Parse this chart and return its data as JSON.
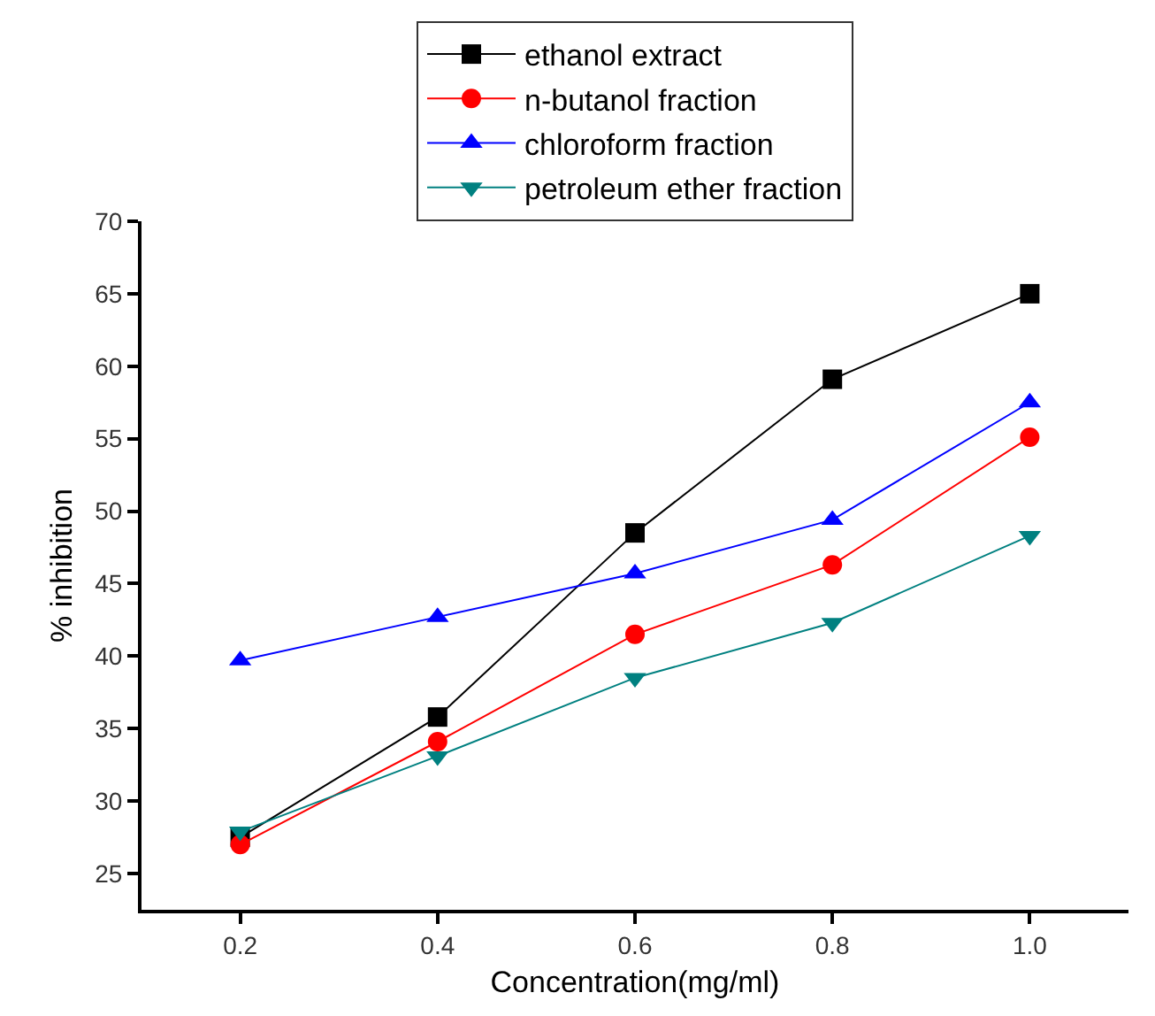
{
  "chart_data": {
    "type": "line",
    "xlabel": "Concentration(mg/ml)",
    "ylabel": "% inhibition",
    "x": [
      0.2,
      0.4,
      0.6,
      0.8,
      1.0
    ],
    "series": [
      {
        "name": "ethanol extract",
        "color": "#000000",
        "marker": "square",
        "values": [
          27.5,
          35.8,
          48.5,
          59.1,
          65.0
        ]
      },
      {
        "name": "n-butanol fraction",
        "color": "#ff0000",
        "marker": "circle",
        "values": [
          27.0,
          34.1,
          41.5,
          46.3,
          55.1
        ]
      },
      {
        "name": "chloroform fraction",
        "color": "#0000ff",
        "marker": "triangle",
        "values": [
          39.7,
          42.7,
          45.7,
          49.4,
          57.5
        ]
      },
      {
        "name": "petroleum ether fraction",
        "color": "#008080",
        "marker": "triangle-down",
        "values": [
          27.9,
          33.1,
          38.5,
          42.3,
          48.3
        ]
      }
    ],
    "xlim": [
      0.1,
      1.1
    ],
    "xticks": [
      0.2,
      0.4,
      0.6,
      0.8,
      {
        "value": 1.0,
        "label": "1.0"
      }
    ],
    "ylim": [
      22.5,
      70
    ],
    "yticks": [
      25,
      30,
      35,
      40,
      45,
      50,
      55,
      60,
      65,
      70
    ],
    "legend": "top",
    "line_style": "solid"
  }
}
